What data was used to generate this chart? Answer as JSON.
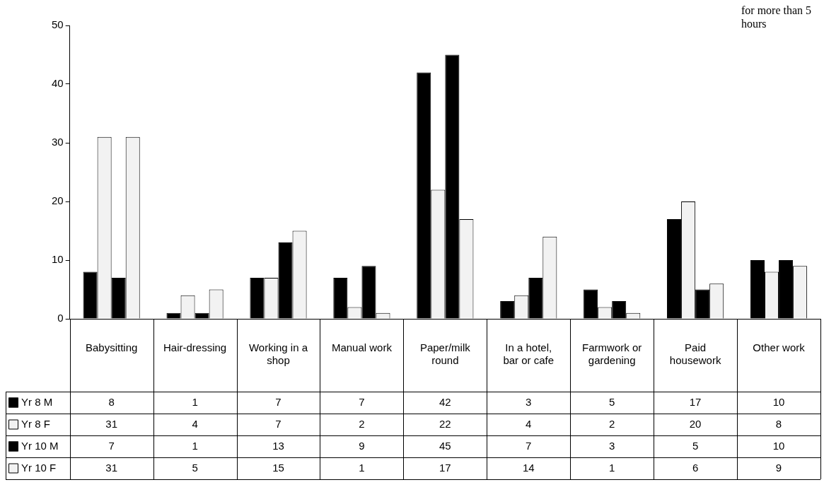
{
  "chart_data": {
    "type": "bar",
    "categories": [
      "Babysitting",
      "Hair-dressing",
      "Working in a shop",
      "Manual work",
      "Paper/milk round",
      "In a hotel, bar or cafe",
      "Farmwork or gardening",
      "Paid housework",
      "Other work"
    ],
    "series": [
      {
        "name": "Yr 8 M",
        "color": "#000000",
        "values": [
          8,
          1,
          7,
          7,
          42,
          3,
          5,
          17,
          10
        ]
      },
      {
        "name": "Yr 8 F",
        "color": "#f2f2f2",
        "values": [
          31,
          4,
          7,
          2,
          22,
          4,
          2,
          20,
          8
        ]
      },
      {
        "name": "Yr 10 M",
        "color": "#000000",
        "values": [
          7,
          1,
          13,
          9,
          45,
          7,
          3,
          5,
          10
        ]
      },
      {
        "name": "Yr 10 F",
        "color": "#f2f2f2",
        "values": [
          31,
          5,
          15,
          1,
          17,
          14,
          1,
          6,
          9
        ]
      }
    ],
    "ylim": [
      0,
      50
    ],
    "yticks": [
      0,
      10,
      20,
      30,
      40,
      50
    ],
    "grid": false,
    "legend": "bottom left",
    "data_labels": true,
    "annotations": [
      "for more than 5 hours"
    ]
  }
}
